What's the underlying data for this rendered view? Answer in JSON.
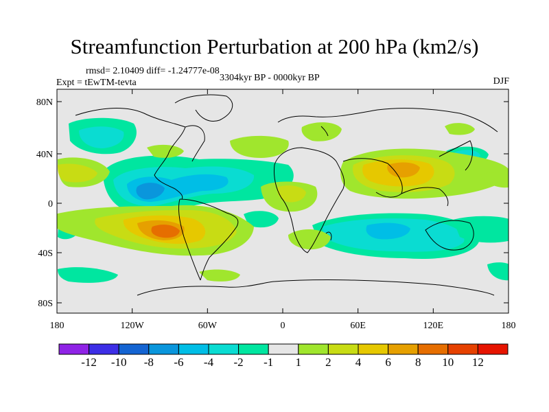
{
  "title": "Streamfunction Perturbation at 200 hPa (km2/s)",
  "stats_line": "rmsd= 2.10409 diff= -1.24777e-08",
  "experiment_line": "Expt = tEwTM-tevta",
  "period_line": "3304kyr BP - 0000kyr BP",
  "season": "DJF",
  "y_ticks": [
    "80N",
    "40N",
    "0",
    "40S",
    "80S"
  ],
  "x_ticks": [
    "180",
    "120W",
    "60W",
    "0",
    "60E",
    "120E",
    "180"
  ],
  "colorbar": {
    "colors": [
      "#8f23e6",
      "#3d2ee6",
      "#1464d2",
      "#0a96dc",
      "#00bee6",
      "#0adcd2",
      "#00e6a0",
      "#e6e6e6",
      "#a0e62d",
      "#c8dc14",
      "#e6c800",
      "#e6a000",
      "#e66e00",
      "#e64100",
      "#e61400"
    ],
    "labels": [
      "-12",
      "-10",
      "-8",
      "-6",
      "-4",
      "-2",
      "-1",
      "1",
      "2",
      "4",
      "6",
      "8",
      "10",
      "12"
    ]
  }
}
